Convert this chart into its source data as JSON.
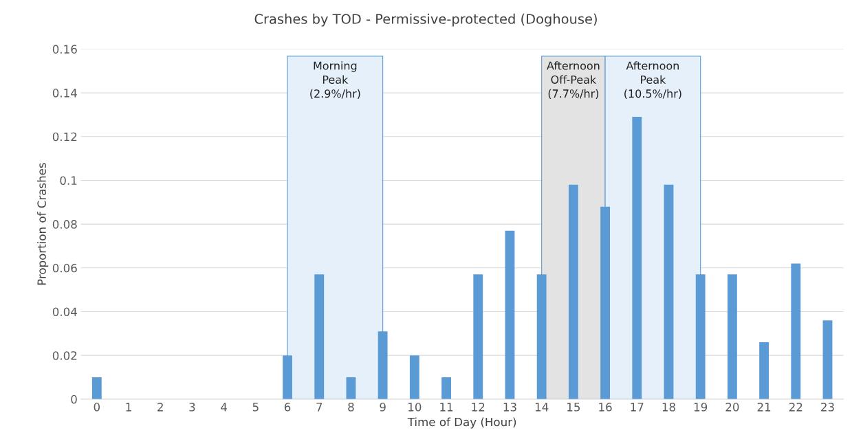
{
  "chart_data": {
    "type": "bar",
    "title": "Crashes by TOD - Permissive-protected (Doghouse)",
    "xlabel": "Time of Day (Hour)",
    "ylabel": "Proportion of Crashes",
    "categories": [
      "0",
      "1",
      "2",
      "3",
      "4",
      "5",
      "6",
      "7",
      "8",
      "9",
      "10",
      "11",
      "12",
      "13",
      "14",
      "15",
      "16",
      "17",
      "18",
      "19",
      "20",
      "21",
      "22",
      "23"
    ],
    "values": [
      0.01,
      0,
      0,
      0,
      0,
      0,
      0.02,
      0.057,
      0.01,
      0.031,
      0.02,
      0.01,
      0.057,
      0.077,
      0.057,
      0.098,
      0.088,
      0.129,
      0.098,
      0.057,
      0.057,
      0.026,
      0.062,
      0.036
    ],
    "color": "#5b9bd5",
    "ylim": [
      0,
      0.16
    ],
    "yticks": [
      {
        "value": 0,
        "label": "0"
      },
      0.02,
      0.04,
      0.06,
      0.08,
      {
        "value": 0.1,
        "label": "0.1"
      },
      0.12,
      0.14,
      0.16
    ],
    "grid": "y",
    "bands": [
      {
        "axis": "x",
        "from": "6",
        "to": "9",
        "label": "Morning\nPeak\n(2.9%/hr)",
        "color": "#e6f0fa"
      },
      {
        "axis": "x",
        "from": "14",
        "to": "16",
        "label": "Afternoon\nOff-Peak\n(7.7%/hr)",
        "color": "#e3e3e3"
      },
      {
        "axis": "x",
        "from": "16",
        "to": "19",
        "label": "Afternoon\nPeak\n(10.5%/hr)",
        "color": "#e6f0fa"
      }
    ]
  }
}
